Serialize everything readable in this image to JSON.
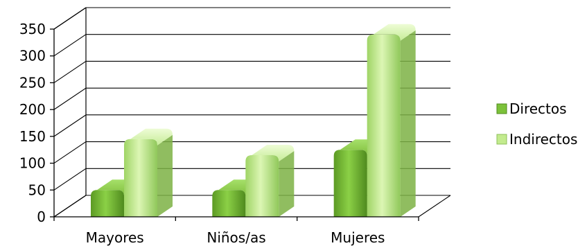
{
  "chart_data": {
    "type": "bar",
    "categories": [
      "Mayores",
      "Niños/as",
      "Mujeres"
    ],
    "series": [
      {
        "name": "Directos",
        "values": [
          50,
          50,
          125
        ],
        "color": "#7cc23a"
      },
      {
        "name": "Indirectos",
        "values": [
          145,
          115,
          340
        ],
        "color": "#c3eb8e"
      }
    ],
    "yticks": [
      "0",
      "50",
      "100",
      "150",
      "200",
      "250",
      "300",
      "350"
    ],
    "ylim": [
      0,
      350
    ],
    "grid": true,
    "legend_position": "right",
    "style": "3d-column"
  }
}
